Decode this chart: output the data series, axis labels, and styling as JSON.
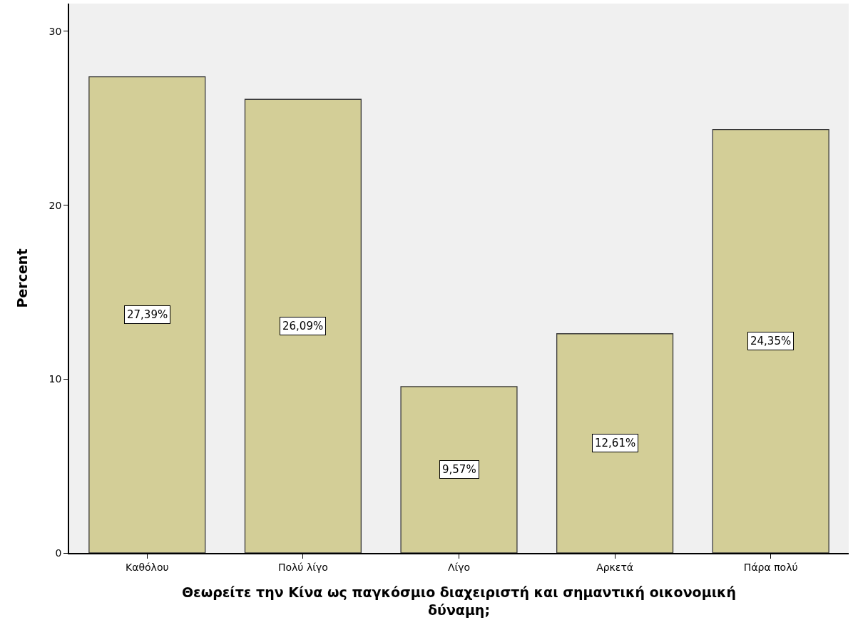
{
  "chart_data": {
    "type": "bar",
    "xlabel": "Θεωρείτε την Κίνα ως παγκόσμιο διαχειριστή και σημαντική οικονομική δύναμη;",
    "ylabel": "Percent",
    "categories": [
      "Καθόλου",
      "Πολύ λίγο",
      "Λίγο",
      "Αρκετά",
      "Πάρα πολύ"
    ],
    "values": [
      27.39,
      26.09,
      9.57,
      12.61,
      24.35
    ],
    "value_labels": [
      "27,39%",
      "26,09%",
      "9,57%",
      "12,61%",
      "24,35%"
    ],
    "color": "#d3ce97",
    "ylim": [
      0,
      31.6
    ],
    "yticks": [
      0,
      10,
      20,
      30
    ],
    "grid": false
  }
}
